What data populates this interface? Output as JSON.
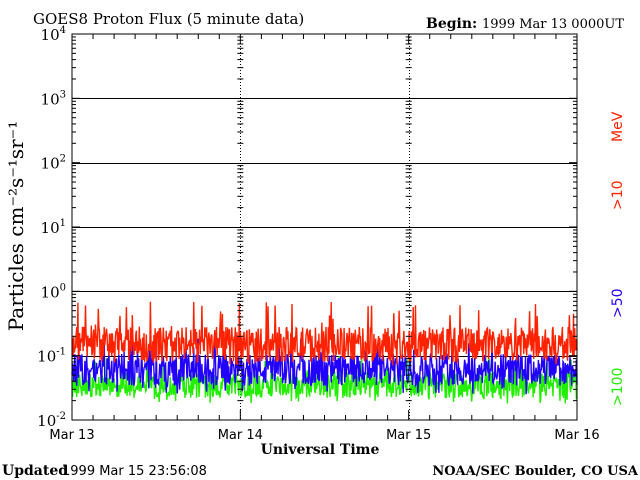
{
  "chart_data": {
    "type": "line",
    "title": "GOES8 Proton Flux (5 minute data)",
    "begin_label": "Begin:",
    "begin_value": "1999 Mar 13 0000UT",
    "xlabel": "Universal Time",
    "ylabel": "Particles cm⁻²s⁻¹sr⁻¹",
    "yscale": "log",
    "ylim": [
      0.01,
      10000
    ],
    "y_ticks": [
      {
        "base": "10",
        "exp": "-2",
        "value": 0.01
      },
      {
        "base": "10",
        "exp": "-1",
        "value": 0.1
      },
      {
        "base": "10",
        "exp": "0",
        "value": 1
      },
      {
        "base": "10",
        "exp": "1",
        "value": 10
      },
      {
        "base": "10",
        "exp": "2",
        "value": 100
      },
      {
        "base": "10",
        "exp": "3",
        "value": 1000
      },
      {
        "base": "10",
        "exp": "4",
        "value": 10000
      }
    ],
    "x_ticks": [
      "Mar 13",
      "Mar 14",
      "Mar 15",
      "Mar 16"
    ],
    "xlim": [
      "1999-03-13 00:00",
      "1999-03-16 00:00"
    ],
    "grid": "horizontal at decades",
    "legend_placement": "right side, vertical",
    "series": [
      {
        "name": ">10",
        "unit": "MeV",
        "color": "#ff2200",
        "typical": 0.15,
        "range": [
          0.07,
          0.7
        ]
      },
      {
        "name": ">50",
        "color": "#2200ff",
        "typical": 0.06,
        "range": [
          0.025,
          0.2
        ]
      },
      {
        "name": ">100",
        "color": "#22ee00",
        "typical": 0.035,
        "range": [
          0.018,
          0.1
        ]
      }
    ]
  },
  "footer": {
    "updated_label": "Updated",
    "updated_value": "1999 Mar 15 23:56:08",
    "credit": "NOAA/SEC Boulder, CO USA"
  }
}
